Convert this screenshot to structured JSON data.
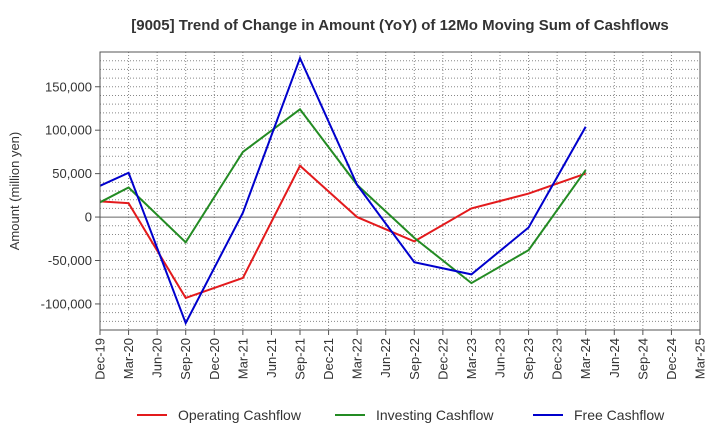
{
  "chart_data": {
    "type": "line",
    "title": "[9005]  Trend of Change in Amount (YoY) of 12Mo Moving Sum of Cashflows",
    "xlabel": "",
    "ylabel": "Amount (million yen)",
    "ylim": [
      -130000,
      190000
    ],
    "yticks": [
      -100000,
      -50000,
      0,
      50000,
      100000,
      150000
    ],
    "ytick_labels": [
      "-100,000",
      "-50,000",
      "0",
      "50,000",
      "100,000",
      "150,000"
    ],
    "categories": [
      "Dec-19",
      "Mar-20",
      "Jun-20",
      "Sep-20",
      "Dec-20",
      "Mar-21",
      "Jun-21",
      "Sep-21",
      "Dec-21",
      "Mar-22",
      "Jun-22",
      "Sep-22",
      "Dec-22",
      "Mar-23",
      "Jun-23",
      "Sep-23",
      "Dec-23",
      "Mar-24",
      "Jun-24",
      "Sep-24",
      "Dec-24",
      "Mar-25"
    ],
    "grid": true,
    "legend_position": "bottom",
    "series": [
      {
        "name": "Operating Cashflow",
        "color": "#e31a1c",
        "points": [
          [
            0,
            18000
          ],
          [
            1,
            16000
          ],
          [
            3,
            -93000
          ],
          [
            5,
            -70000
          ],
          [
            7,
            59000
          ],
          [
            9,
            0
          ],
          [
            11,
            -28000
          ],
          [
            13,
            10000
          ],
          [
            15,
            27000
          ],
          [
            17,
            50000
          ]
        ]
      },
      {
        "name": "Investing Cashflow",
        "color": "#238b23",
        "points": [
          [
            0,
            17000
          ],
          [
            1,
            34000
          ],
          [
            3,
            -29000
          ],
          [
            5,
            75000
          ],
          [
            7,
            124000
          ],
          [
            9,
            37000
          ],
          [
            11,
            -24000
          ],
          [
            13,
            -76000
          ],
          [
            15,
            -38000
          ],
          [
            17,
            54000
          ]
        ]
      },
      {
        "name": "Free Cashflow",
        "color": "#0000cc",
        "points": [
          [
            0,
            36000
          ],
          [
            1,
            51000
          ],
          [
            3,
            -122000
          ],
          [
            5,
            5000
          ],
          [
            7,
            183000
          ],
          [
            9,
            37000
          ],
          [
            11,
            -52000
          ],
          [
            13,
            -66000
          ],
          [
            15,
            -12000
          ],
          [
            17,
            104000
          ]
        ]
      }
    ]
  }
}
